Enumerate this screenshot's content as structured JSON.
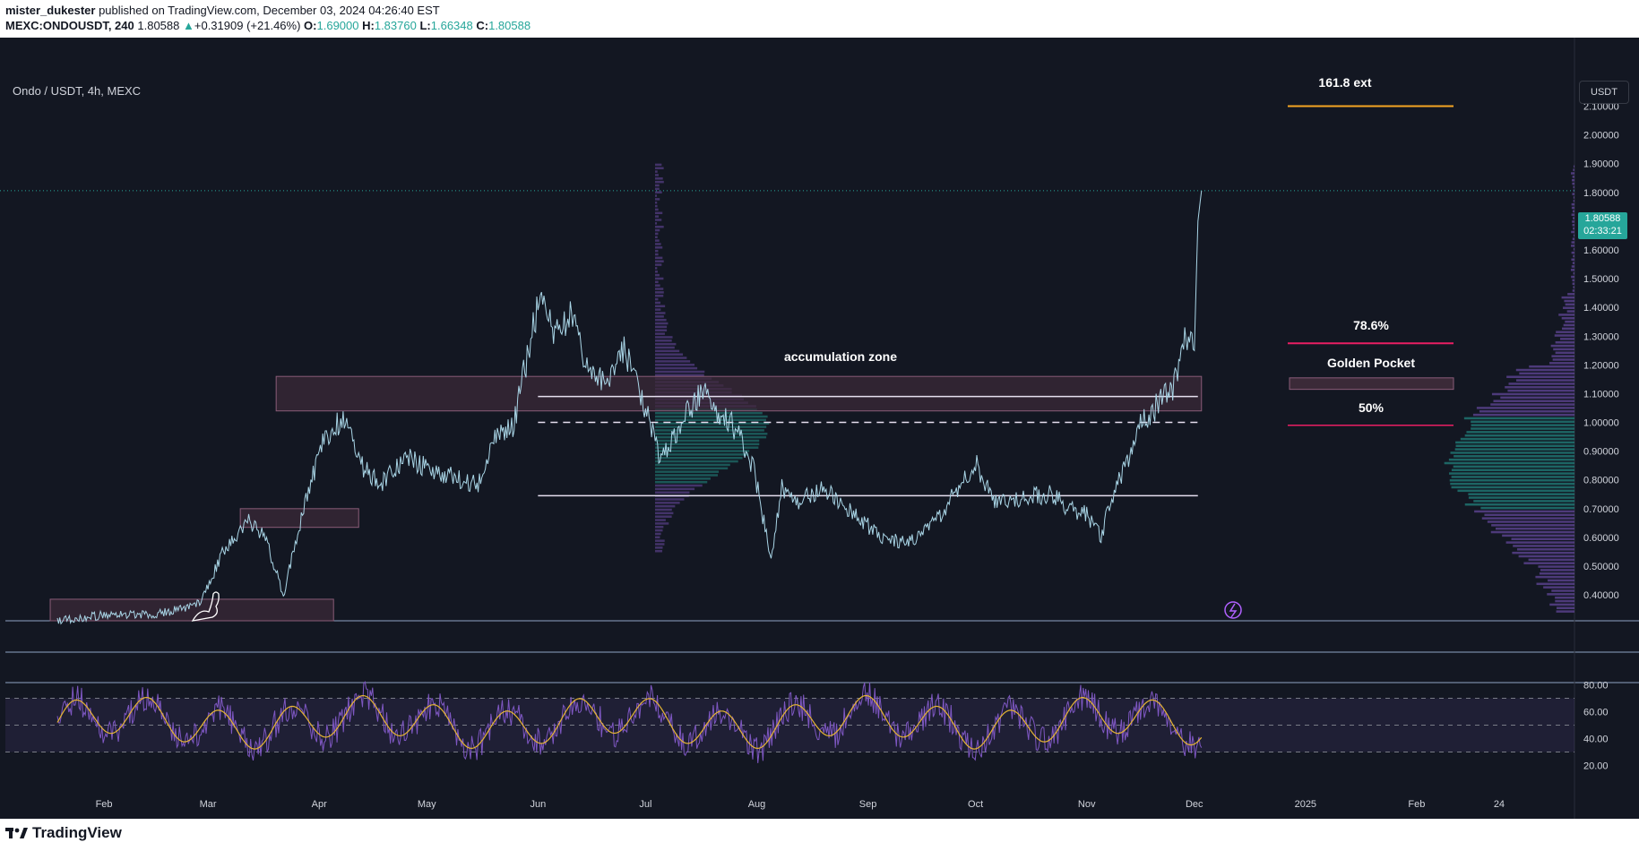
{
  "header": {
    "author": "mister_dukester",
    "published_text": "published on TradingView.com, December 03, 2024 04:26:40 EST",
    "ticker": "MEXC:ONDOUSDT, 240",
    "last": "1.80588",
    "change_arrow": "▲",
    "change": "+0.31909 (+21.46%)",
    "o_label": "O:",
    "o": "1.69000",
    "h_label": "H:",
    "h": "1.83760",
    "l_label": "L:",
    "l": "1.66348",
    "c_label": "C:",
    "c": "1.80588"
  },
  "chart_header": {
    "symbol_title": "Ondo / USDT, 4h, MEXC",
    "currency_button": "USDT",
    "price_tag": "1.80588",
    "countdown": "02:33:21"
  },
  "footer": {
    "brand": "TradingView",
    "logo_icon": "tradingview-logo-icon"
  },
  "colors": {
    "background": "#131722",
    "price_line": "#a9d5e6",
    "last_price": "#26a69a",
    "rsi": "#7e57c2",
    "rsi_ma": "#e6b533",
    "fib_ext": "#f5a623",
    "fib_786": "#e91e63",
    "zone_fill": "#3b2a38",
    "zone_border": "#8a5c78"
  },
  "chart_data": {
    "type": "line",
    "price_axis": {
      "ticks": [
        0.4,
        0.5,
        0.6,
        0.7,
        0.8,
        0.9,
        1.0,
        1.1,
        1.2,
        1.3,
        1.4,
        1.5,
        1.6,
        1.7,
        1.8,
        1.9,
        2.0,
        2.1
      ],
      "tick_labels": [
        "0.40000",
        "0.50000",
        "0.60000",
        "0.70000",
        "0.80000",
        "0.90000",
        "1.00000",
        "1.10000",
        "1.20000",
        "1.30000",
        "1.40000",
        "1.50000",
        "1.60000",
        "1.70000",
        "1.80000",
        "1.90000",
        "2.00000",
        "2.10000"
      ],
      "range": [
        0.31,
        2.22
      ]
    },
    "time_axis": {
      "labels": [
        "Feb",
        "Mar",
        "Apr",
        "May",
        "Jun",
        "Jul",
        "Aug",
        "Sep",
        "Oct",
        "Nov",
        "Dec",
        "2025",
        "Feb",
        "24"
      ],
      "label_dates": [
        "2024-02-01",
        "2024-03-01",
        "2024-04-01",
        "2024-05-01",
        "2024-06-01",
        "2024-07-01",
        "2024-08-01",
        "2024-09-01",
        "2024-10-01",
        "2024-11-01",
        "2024-12-01",
        "2025-01-01",
        "2025-02-01",
        "2025-02-24"
      ],
      "range": [
        "2024-01-03",
        "2025-03-17"
      ]
    },
    "series": [
      {
        "x": [
          "2024-01-19",
          "2024-02-01",
          "2024-02-15",
          "2024-02-28",
          "2024-03-05",
          "2024-03-12",
          "2024-03-17",
          "2024-03-22",
          "2024-03-28",
          "2024-04-02",
          "2024-04-08",
          "2024-04-13",
          "2024-04-18",
          "2024-04-25",
          "2024-05-05",
          "2024-05-15",
          "2024-05-20",
          "2024-05-25",
          "2024-05-29",
          "2024-06-02",
          "2024-06-06",
          "2024-06-10",
          "2024-06-15",
          "2024-06-20",
          "2024-06-25",
          "2024-07-01",
          "2024-07-05",
          "2024-07-12",
          "2024-07-17",
          "2024-07-20",
          "2024-07-25",
          "2024-07-31",
          "2024-08-05",
          "2024-08-08",
          "2024-08-12",
          "2024-08-20",
          "2024-08-28",
          "2024-09-05",
          "2024-09-12",
          "2024-09-20",
          "2024-09-28",
          "2024-10-01",
          "2024-10-06",
          "2024-10-15",
          "2024-10-22",
          "2024-10-27",
          "2024-11-01",
          "2024-11-05",
          "2024-11-08",
          "2024-11-12",
          "2024-11-15",
          "2024-11-20",
          "2024-11-25",
          "2024-11-28",
          "2024-12-01",
          "2024-12-02",
          "2024-12-03"
        ],
        "values": [
          0.31,
          0.33,
          0.33,
          0.37,
          0.55,
          0.66,
          0.6,
          0.4,
          0.72,
          0.93,
          1.02,
          0.85,
          0.78,
          0.88,
          0.82,
          0.78,
          0.95,
          0.98,
          1.23,
          1.46,
          1.3,
          1.38,
          1.2,
          1.12,
          1.25,
          1.05,
          0.88,
          1.02,
          1.12,
          1.05,
          1.0,
          0.85,
          0.52,
          0.78,
          0.72,
          0.77,
          0.68,
          0.6,
          0.58,
          0.66,
          0.8,
          0.86,
          0.72,
          0.74,
          0.75,
          0.7,
          0.68,
          0.6,
          0.74,
          0.85,
          0.98,
          1.05,
          1.12,
          1.28,
          1.25,
          1.7,
          1.80588
        ]
      }
    ],
    "levels": [
      {
        "label": "161.8 ext",
        "price": 2.1
      },
      {
        "label": "78.6%",
        "price": 1.275
      },
      {
        "label": "Golden Pocket",
        "price_low": 1.115,
        "price_high": 1.155
      },
      {
        "label": "50%",
        "price": 0.99
      }
    ],
    "annotations": [
      {
        "text": "accumulation zone"
      }
    ],
    "zones": [
      {
        "x0": "2024-03-20",
        "x1": "2024-12-03",
        "price_low": 1.04,
        "price_high": 1.16
      },
      {
        "x0": "2024-03-10",
        "x1": "2024-04-12",
        "price_low": 0.635,
        "price_high": 0.7
      },
      {
        "x0": "2024-01-17",
        "x1": "2024-04-05",
        "price_low": 0.31,
        "price_high": 0.385
      }
    ],
    "horizontal_lines": [
      {
        "price": 1.09,
        "style": "solid"
      },
      {
        "price": 1.0,
        "style": "dashed"
      },
      {
        "price": 0.745,
        "style": "solid"
      }
    ],
    "rsi": {
      "ticks": [
        20,
        40,
        60,
        80
      ],
      "tick_labels": [
        "20.00",
        "40.00",
        "60.00",
        "80.00"
      ],
      "range": [
        15,
        85
      ],
      "band": [
        30,
        70
      ],
      "midline": 50,
      "value_range_seen": [
        18,
        84
      ]
    },
    "grid": false,
    "legend": "none"
  }
}
